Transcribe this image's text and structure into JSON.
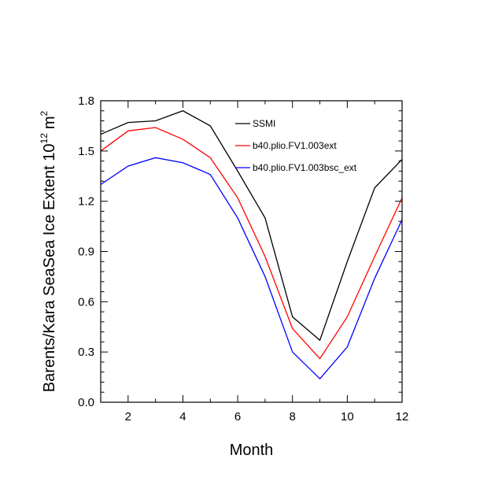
{
  "chart_data": {
    "type": "line",
    "title": "",
    "xlabel": "Month",
    "ylabel": "Barents/Kara SeaSea Ice Extent 10",
    "ylabel_exponent": "12",
    "ylabel_unit": "m",
    "ylabel_unit_exponent": "2",
    "xlim": [
      1,
      12
    ],
    "ylim": [
      0.0,
      1.8
    ],
    "x_ticks": [
      2,
      4,
      6,
      8,
      10,
      12
    ],
    "x_tick_labels": [
      "2",
      "4",
      "6",
      "8",
      "10",
      "12"
    ],
    "y_ticks": [
      0.0,
      0.3,
      0.6,
      0.9,
      1.2,
      1.5,
      1.8
    ],
    "y_tick_labels": [
      "0.0",
      "0.3",
      "0.6",
      "0.9",
      "1.2",
      "1.5",
      "1.8"
    ],
    "grid": false,
    "legend_position": "top-right",
    "x": [
      1,
      2,
      3,
      4,
      5,
      6,
      7,
      8,
      9,
      10,
      11,
      12
    ],
    "series": [
      {
        "name": "SSMI",
        "color": "#000000",
        "values": [
          1.6,
          1.67,
          1.68,
          1.74,
          1.65,
          1.38,
          1.1,
          0.51,
          0.37,
          0.84,
          1.28,
          1.45
        ]
      },
      {
        "name": "b40.plio.FV1.003ext",
        "color": "#ff0000",
        "values": [
          1.5,
          1.62,
          1.64,
          1.57,
          1.46,
          1.22,
          0.87,
          0.44,
          0.26,
          0.51,
          0.87,
          1.22
        ]
      },
      {
        "name": "b40.plio.FV1.003bsc_ext",
        "color": "#0000ff",
        "values": [
          1.3,
          1.41,
          1.46,
          1.43,
          1.36,
          1.1,
          0.75,
          0.3,
          0.14,
          0.33,
          0.74,
          1.09
        ]
      }
    ]
  }
}
